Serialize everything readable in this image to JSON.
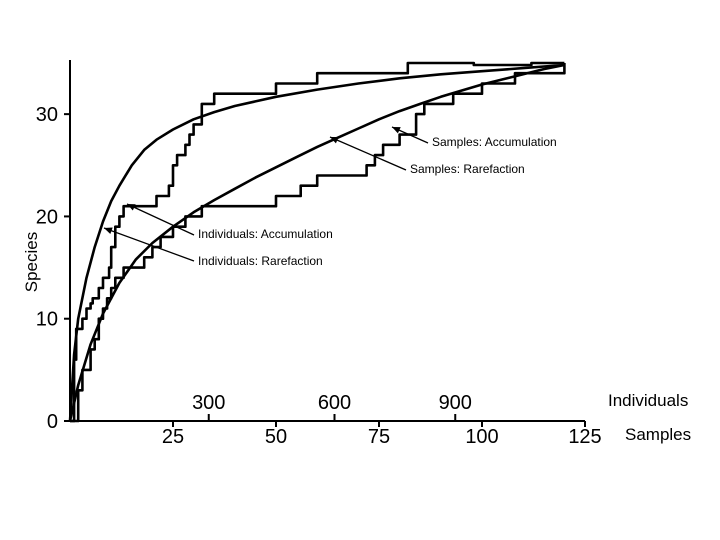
{
  "chart_data": {
    "type": "line",
    "ylabel": "Species",
    "ylim": [
      0,
      35
    ],
    "yticks": [
      "0",
      "10",
      "20",
      "30"
    ],
    "axes": {
      "samples": {
        "label": "Samples",
        "range": [
          0,
          125
        ],
        "ticks": [
          "25",
          "50",
          "75",
          "100",
          "125"
        ]
      },
      "individuals": {
        "label": "Individuals",
        "range": [
          0,
          1000
        ],
        "ticks": [
          "300",
          "600",
          "900"
        ]
      }
    },
    "series": [
      {
        "name": "Individuals: Rarefaction",
        "x_axis": "samples",
        "x": [
          0,
          1,
          2,
          4,
          6,
          8,
          10,
          12,
          15,
          18,
          21,
          25,
          30,
          35,
          40,
          50,
          60,
          70,
          80,
          90,
          100,
          110,
          120
        ],
        "y": [
          0,
          6.5,
          10,
          14,
          17,
          19.5,
          21.5,
          23,
          25,
          26.5,
          27.5,
          28.5,
          29.5,
          30.2,
          30.8,
          31.7,
          32.4,
          33,
          33.5,
          33.9,
          34.2,
          34.5,
          34.8
        ]
      },
      {
        "name": "Individuals: Accumulation",
        "x_axis": "samples",
        "x": [
          0,
          1,
          1.5,
          3,
          4,
          5,
          5.5,
          7,
          8,
          9.5,
          10,
          11,
          12,
          13,
          14,
          20,
          21,
          24,
          25,
          26,
          28,
          29,
          30,
          32,
          35,
          38,
          40,
          45,
          50,
          55,
          58,
          60,
          66,
          70,
          80,
          82,
          95,
          98,
          110,
          112,
          120
        ],
        "y": [
          0,
          6,
          9,
          10,
          11,
          11.5,
          12,
          13,
          14,
          15,
          17,
          19,
          20,
          21,
          21,
          21,
          22,
          23,
          25,
          26,
          27,
          28,
          29,
          31,
          32,
          32,
          32,
          32,
          33,
          33,
          33,
          34,
          34,
          34,
          34,
          35,
          35,
          34.8,
          34.8,
          35,
          35
        ]
      },
      {
        "name": "Samples: Rarefaction",
        "x_axis": "samples",
        "x": [
          0,
          2,
          5,
          8,
          12,
          16,
          20,
          25,
          30,
          35,
          40,
          45,
          50,
          55,
          60,
          65,
          70,
          75,
          80,
          85,
          90,
          95,
          100,
          105,
          110,
          115,
          120
        ],
        "y": [
          0,
          3.5,
          7.5,
          10.5,
          13.5,
          15.8,
          17.4,
          19,
          20.4,
          21.6,
          22.7,
          23.8,
          24.8,
          25.8,
          26.8,
          27.7,
          28.6,
          29.5,
          30.3,
          31,
          31.7,
          32.3,
          32.9,
          33.4,
          33.9,
          34.4,
          34.8
        ]
      },
      {
        "name": "Samples: Accumulation",
        "x_axis": "samples",
        "x": [
          0,
          2,
          3,
          5,
          6,
          7,
          8,
          9,
          10,
          11,
          13,
          14,
          16,
          18,
          20,
          22,
          25,
          28,
          32,
          36,
          40,
          46,
          50,
          55,
          56,
          60,
          62,
          66,
          70,
          72,
          74,
          76,
          80,
          84,
          86,
          90,
          93,
          96,
          100,
          104,
          108,
          112,
          120
        ],
        "y": [
          0,
          3,
          5,
          7,
          8,
          10,
          11,
          12,
          13,
          14,
          15,
          15,
          15,
          16,
          17,
          18,
          19,
          20,
          21,
          21,
          21,
          21,
          22,
          22,
          23,
          24,
          24,
          24,
          24,
          25,
          26,
          27,
          28,
          30,
          31,
          31,
          32,
          32,
          33,
          33,
          34,
          34,
          35
        ]
      }
    ]
  }
}
